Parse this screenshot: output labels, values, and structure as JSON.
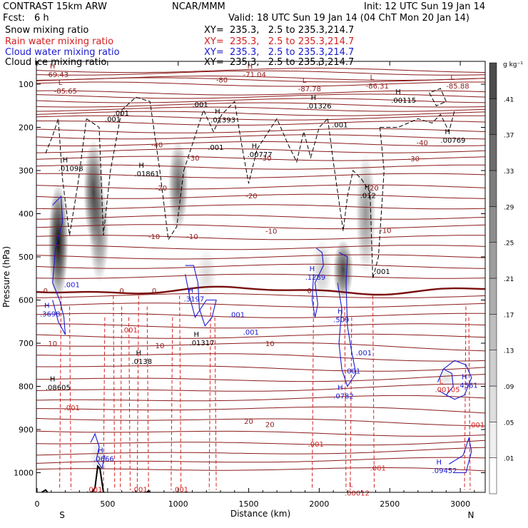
{
  "header": {
    "model": "CONTRAST 15km ARW",
    "org": "NCAR/MMM",
    "init": "Init: 12 UTC Sun 19 Jan 14",
    "fcst_label": "Fcst:",
    "fcst_value": "6 h",
    "valid": "Valid: 18 UTC Sun 19 Jan 14 (04 ChT Mon 20 Jan 14)"
  },
  "legend": [
    {
      "name": "Snow mixing ratio",
      "xy": "",
      "color": "#000000"
    },
    {
      "name": "Rain water mixing ratio",
      "xy": "XY=  235.3,   2.5 to 235.3,214.7",
      "color": "#d42020"
    },
    {
      "name": "Cloud water mixing ratio",
      "xy": "XY=  235.3,   2.5 to 235.3,214.7",
      "color": "#1a1ad0"
    },
    {
      "name": "Cloud ice mixing ratio",
      "xy": "XY=  235.3,   2.5 to 235.3,214.7",
      "color": "#000000"
    }
  ],
  "xy_main": "XY=  235.3,   2.5 to 235.3,214.7",
  "colorbar": {
    "unit": "g kg⁻¹",
    "ticks": [
      ".01",
      ".05",
      ".09",
      ".13",
      ".17",
      ".21",
      ".25",
      ".29",
      ".33",
      ".37",
      ".41"
    ],
    "values": [
      0.01,
      0.05,
      0.09,
      0.13,
      0.17,
      0.21,
      0.25,
      0.29,
      0.33,
      0.37,
      0.41
    ],
    "max": 0.45
  },
  "chart_data": {
    "type": "cross-section contour",
    "xlabel": "Distance (km)",
    "ylabel": "Pressure (hPa)",
    "xlim": [
      0,
      3200
    ],
    "ylim": [
      1050,
      60
    ],
    "x_ticks": [
      0,
      500,
      1000,
      1500,
      2000,
      2500,
      3000
    ],
    "y_ticks": [
      100,
      200,
      300,
      400,
      500,
      600,
      700,
      800,
      900,
      1000
    ],
    "end_labels": {
      "left": "S",
      "right": "N"
    },
    "snow_shading": [
      {
        "x": 150,
        "p_top": 330,
        "p_bottom": 600,
        "peak": 0.41
      },
      {
        "x": 400,
        "p_top": 230,
        "p_bottom": 470,
        "peak": 0.3
      },
      {
        "x": 440,
        "p_top": 330,
        "p_bottom": 560,
        "peak": 0.2
      },
      {
        "x": 1000,
        "p_top": 230,
        "p_bottom": 440,
        "peak": 0.25
      },
      {
        "x": 1200,
        "p_top": 480,
        "p_bottom": 600,
        "peak": 0.06
      },
      {
        "x": 2020,
        "p_top": 460,
        "p_bottom": 600,
        "peak": 0.09
      },
      {
        "x": 2170,
        "p_top": 460,
        "p_bottom": 600,
        "peak": 0.3
      },
      {
        "x": 2330,
        "p_top": 260,
        "p_bottom": 540,
        "peak": 0.17
      },
      {
        "x": 2900,
        "p_top": 760,
        "p_bottom": 800,
        "peak": 0.05
      },
      {
        "x": 440,
        "p_top": 920,
        "p_bottom": 1010,
        "peak": 0.05
      }
    ],
    "temperature_contours": [
      {
        "label": "-80",
        "x": 1310,
        "p": 89
      },
      {
        "label": "-40",
        "x": 850,
        "p": 240
      },
      {
        "label": "-40",
        "x": 2730,
        "p": 235
      },
      {
        "label": "-30",
        "x": 1110,
        "p": 270
      },
      {
        "label": "-30",
        "x": 1620,
        "p": 270
      },
      {
        "label": "-30",
        "x": 2670,
        "p": 272
      },
      {
        "label": "-20",
        "x": 880,
        "p": 340
      },
      {
        "label": "-20",
        "x": 1520,
        "p": 358
      },
      {
        "label": "-20",
        "x": 2380,
        "p": 340
      },
      {
        "label": "-10",
        "x": 830,
        "p": 452
      },
      {
        "label": "-10",
        "x": 1100,
        "p": 452
      },
      {
        "label": "-10",
        "x": 1660,
        "p": 440
      },
      {
        "label": "-10",
        "x": 2470,
        "p": 438
      },
      {
        "label": "0",
        "x": 60,
        "p": 578
      },
      {
        "label": "0",
        "x": 600,
        "p": 578
      },
      {
        "label": "0",
        "x": 830,
        "p": 578
      },
      {
        "label": "0",
        "x": 1930,
        "p": 578
      },
      {
        "label": "10",
        "x": 110,
        "p": 700
      },
      {
        "label": "10",
        "x": 870,
        "p": 705
      },
      {
        "label": "10",
        "x": 1650,
        "p": 700
      },
      {
        "label": "20",
        "x": 1500,
        "p": 880
      },
      {
        "label": "20",
        "x": 1650,
        "p": 888
      }
    ],
    "extrema": [
      {
        "type": "H",
        "x": 60,
        "p": 70,
        "value": "-69.43"
      },
      {
        "type": "H",
        "x": 1460,
        "p": 70,
        "value": "-71.04"
      },
      {
        "type": "L",
        "x": 120,
        "p": 108,
        "value": "-85.65"
      },
      {
        "type": "L",
        "x": 1850,
        "p": 103,
        "value": "-87.78"
      },
      {
        "type": "L",
        "x": 2330,
        "p": 97,
        "value": "-86.31"
      },
      {
        "type": "L",
        "x": 2900,
        "p": 97,
        "value": "-85.88"
      },
      {
        "type": "H",
        "x": 1910,
        "p": 143,
        "value": ".01326"
      },
      {
        "type": "H",
        "x": 2510,
        "p": 130,
        "value": ".00115"
      },
      {
        "type": "H",
        "x": 1230,
        "p": 175,
        "value": ".01393"
      },
      {
        "type": "H",
        "x": 2860,
        "p": 222,
        "value": ".00769"
      },
      {
        "type": "H",
        "x": 1490,
        "p": 255,
        "value": ".00777"
      },
      {
        "type": "H",
        "x": 150,
        "p": 288,
        "value": ".01098"
      },
      {
        "type": "H",
        "x": 690,
        "p": 300,
        "value": ".01861"
      },
      {
        "type": "H",
        "x": 2290,
        "p": 350,
        "value": ".012"
      },
      {
        "type": "H",
        "x": 1900,
        "p": 540,
        "value": ".1289"
      },
      {
        "type": "H",
        "x": 1040,
        "p": 590,
        "value": ".3197"
      },
      {
        "type": "H",
        "x": 20,
        "p": 625,
        "value": ".3698"
      },
      {
        "type": "H",
        "x": 2100,
        "p": 638,
        "value": ".509"
      },
      {
        "type": "H",
        "x": 1080,
        "p": 692,
        "value": ".01317"
      },
      {
        "type": "H",
        "x": 670,
        "p": 735,
        "value": ".0138"
      },
      {
        "type": "H",
        "x": 60,
        "p": 795,
        "value": ".08605"
      },
      {
        "type": "H",
        "x": 2100,
        "p": 815,
        "value": ".0782"
      },
      {
        "type": "H",
        "x": 2980,
        "p": 790,
        "value": ".4561"
      },
      {
        "type": "L",
        "x": 2820,
        "p": 800,
        "value": ".00105"
      },
      {
        "type": "H",
        "x": 400,
        "p": 960,
        "value": ".0666"
      },
      {
        "type": "H",
        "x": 2800,
        "p": 988,
        "value": ".09452"
      },
      {
        "type": "L",
        "x": 2180,
        "p": 1040,
        "value": ".00012"
      }
    ],
    "point_labels": [
      {
        "text": ".001",
        "x": 540,
        "p": 173,
        "color": "#000000"
      },
      {
        "text": ".001",
        "x": 1100,
        "p": 153,
        "color": "#000000"
      },
      {
        "text": ".001",
        "x": 480,
        "p": 187,
        "color": "#000000"
      },
      {
        "text": ".001",
        "x": 2090,
        "p": 200,
        "color": "#000000"
      },
      {
        "text": ".001",
        "x": 1210,
        "p": 252,
        "color": "#000000"
      },
      {
        "text": ".001",
        "x": 2390,
        "p": 540,
        "color": "#000000"
      },
      {
        "text": ".001",
        "x": 190,
        "p": 570,
        "color": "#1a1ad0"
      },
      {
        "text": ".001",
        "x": 1360,
        "p": 640,
        "color": "#1a1ad0"
      },
      {
        "text": ".001",
        "x": 1460,
        "p": 680,
        "color": "#1a1ad0"
      },
      {
        "text": ".001",
        "x": 2260,
        "p": 728,
        "color": "#1a1ad0"
      },
      {
        "text": ".001",
        "x": 2180,
        "p": 770,
        "color": "#1a1ad0"
      },
      {
        "text": ".001",
        "x": 600,
        "p": 675,
        "color": "#d42020"
      },
      {
        "text": ".001",
        "x": 190,
        "p": 855,
        "color": "#d42020"
      },
      {
        "text": ".001",
        "x": 1920,
        "p": 940,
        "color": "#d42020"
      },
      {
        "text": ".001",
        "x": 2360,
        "p": 995,
        "color": "#d42020"
      },
      {
        "text": ".001",
        "x": 3060,
        "p": 895,
        "color": "#d42020"
      },
      {
        "text": ".001",
        "x": 350,
        "p": 1045,
        "color": "#d42020"
      },
      {
        "text": ".001",
        "x": 670,
        "p": 1045,
        "color": "#d42020"
      },
      {
        "text": ".001",
        "x": 960,
        "p": 1045,
        "color": "#d42020"
      }
    ]
  }
}
